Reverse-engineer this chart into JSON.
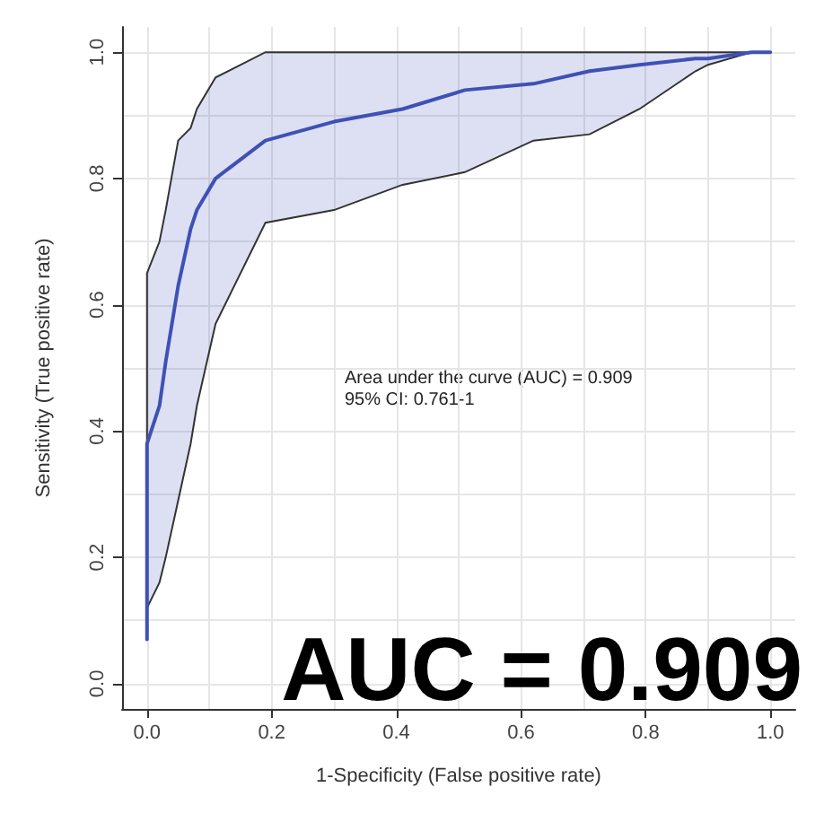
{
  "chart_data": {
    "type": "line",
    "xlabel": "1-Specificity (False positive rate)",
    "ylabel": "Sensitivity (True positive rate)",
    "annotations": [
      "Area under the curve (AUC) = 0.909\n95% CI: 0.761-1",
      "AUC = 0.909"
    ],
    "series": [
      {
        "color": "#3f51b5",
        "x": [
          0,
          0,
          0.02,
          0.03,
          0.05,
          0.07,
          0.08,
          0.11,
          0.19,
          0.3,
          0.41,
          0.51,
          0.62,
          0.71,
          0.79,
          0.88,
          0.9,
          0.97,
          1.0
        ],
        "values": [
          0.07,
          0.38,
          0.44,
          0.51,
          0.63,
          0.72,
          0.75,
          0.8,
          0.86,
          0.89,
          0.91,
          0.94,
          0.95,
          0.97,
          0.98,
          0.99,
          0.99,
          1.0,
          1.0
        ],
        "upper": [
          0.07,
          0.65,
          0.7,
          0.75,
          0.86,
          0.88,
          0.91,
          0.96,
          1.0,
          1.0,
          1.0,
          1.0,
          1.0,
          1.0,
          1.0,
          1.0,
          1.0,
          1.0,
          1.0
        ],
        "lower": [
          0.07,
          0.12,
          0.16,
          0.2,
          0.29,
          0.38,
          0.44,
          0.57,
          0.73,
          0.75,
          0.79,
          0.81,
          0.86,
          0.87,
          0.91,
          0.97,
          0.98,
          1.0,
          1.0
        ]
      }
    ],
    "xlim": [
      -0.04,
      1.04
    ],
    "ylim": [
      -0.04,
      1.04
    ],
    "xticks": [
      {
        "value": 0,
        "label": "0.0"
      },
      0.2,
      0.4,
      0.6,
      0.8,
      {
        "value": 1,
        "label": "1.0"
      }
    ],
    "yticks": [
      {
        "value": 0,
        "label": "0.0"
      },
      0.2,
      0.4,
      0.6,
      0.8,
      {
        "value": 1,
        "label": "1.0"
      }
    ],
    "grid": true,
    "marker": "none",
    "line_style": "solid"
  }
}
